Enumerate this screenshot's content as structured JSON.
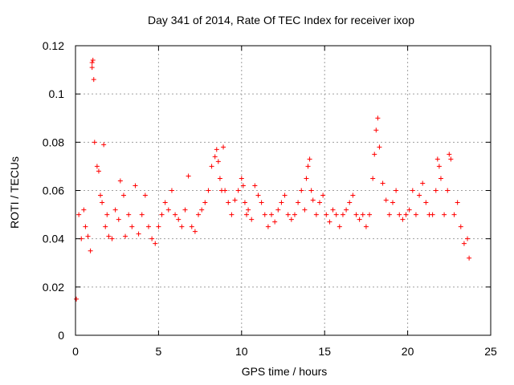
{
  "chart_data": {
    "type": "scatter",
    "title": "Day 341 of 2014, Rate Of TEC Index for receiver ixop",
    "xlabel": "GPS time / hours",
    "ylabel": "ROTI / TECUs",
    "xlim": [
      0,
      25
    ],
    "ylim": [
      0,
      0.12
    ],
    "x_ticks": [
      0,
      5,
      10,
      15,
      20,
      25
    ],
    "x_tick_labels": [
      "0",
      "5",
      "10",
      "15",
      "20",
      "25"
    ],
    "y_ticks": [
      0,
      0.02,
      0.04,
      0.06,
      0.08,
      0.1,
      0.12
    ],
    "y_tick_labels": [
      "0",
      "0.02",
      "0.04",
      "0.06",
      "0.08",
      "0.1",
      "0.12"
    ],
    "grid": true,
    "marker": "plus",
    "series": [
      {
        "name": "ROTI",
        "color": "#ff0000",
        "x": [
          0.05,
          0.2,
          0.35,
          0.5,
          0.6,
          0.75,
          0.9,
          1.0,
          1.0,
          1.05,
          1.1,
          1.15,
          1.3,
          1.4,
          1.5,
          1.6,
          1.7,
          1.8,
          1.9,
          2.0,
          2.2,
          2.4,
          2.6,
          2.7,
          2.9,
          3.0,
          3.2,
          3.4,
          3.6,
          3.8,
          4.0,
          4.2,
          4.4,
          4.6,
          4.8,
          5.0,
          5.2,
          5.4,
          5.6,
          5.8,
          6.0,
          6.2,
          6.4,
          6.6,
          6.8,
          7.0,
          7.2,
          7.4,
          7.6,
          7.8,
          8.0,
          8.2,
          8.4,
          8.5,
          8.6,
          8.7,
          8.8,
          8.9,
          9.0,
          9.2,
          9.4,
          9.6,
          9.8,
          10.0,
          10.1,
          10.2,
          10.3,
          10.4,
          10.6,
          10.8,
          11.0,
          11.2,
          11.4,
          11.6,
          11.8,
          12.0,
          12.2,
          12.4,
          12.6,
          12.8,
          13.0,
          13.2,
          13.4,
          13.6,
          13.8,
          13.9,
          14.0,
          14.1,
          14.2,
          14.3,
          14.5,
          14.7,
          14.9,
          15.1,
          15.3,
          15.5,
          15.7,
          15.9,
          16.1,
          16.3,
          16.5,
          16.7,
          16.9,
          17.1,
          17.3,
          17.5,
          17.7,
          17.9,
          18.0,
          18.1,
          18.2,
          18.3,
          18.5,
          18.7,
          18.9,
          19.1,
          19.3,
          19.5,
          19.7,
          19.9,
          20.1,
          20.3,
          20.5,
          20.7,
          20.9,
          21.1,
          21.3,
          21.5,
          21.7,
          21.8,
          21.9,
          22.0,
          22.2,
          22.4,
          22.5,
          22.6,
          22.8,
          23.0,
          23.2,
          23.4,
          23.6,
          23.7
        ],
        "y": [
          0.015,
          0.05,
          0.04,
          0.052,
          0.045,
          0.041,
          0.035,
          0.113,
          0.111,
          0.114,
          0.106,
          0.08,
          0.07,
          0.068,
          0.058,
          0.055,
          0.079,
          0.045,
          0.05,
          0.041,
          0.04,
          0.052,
          0.048,
          0.064,
          0.058,
          0.041,
          0.05,
          0.045,
          0.062,
          0.042,
          0.05,
          0.058,
          0.045,
          0.04,
          0.038,
          0.045,
          0.05,
          0.055,
          0.052,
          0.06,
          0.05,
          0.048,
          0.045,
          0.052,
          0.066,
          0.045,
          0.043,
          0.05,
          0.052,
          0.055,
          0.06,
          0.07,
          0.074,
          0.077,
          0.072,
          0.065,
          0.06,
          0.078,
          0.06,
          0.055,
          0.05,
          0.056,
          0.06,
          0.065,
          0.062,
          0.055,
          0.05,
          0.052,
          0.048,
          0.062,
          0.058,
          0.055,
          0.05,
          0.045,
          0.05,
          0.047,
          0.052,
          0.055,
          0.058,
          0.05,
          0.048,
          0.05,
          0.055,
          0.06,
          0.052,
          0.065,
          0.07,
          0.073,
          0.06,
          0.056,
          0.05,
          0.055,
          0.058,
          0.05,
          0.047,
          0.052,
          0.05,
          0.045,
          0.05,
          0.052,
          0.055,
          0.058,
          0.05,
          0.048,
          0.05,
          0.045,
          0.05,
          0.065,
          0.075,
          0.085,
          0.09,
          0.078,
          0.063,
          0.056,
          0.05,
          0.055,
          0.06,
          0.05,
          0.048,
          0.05,
          0.052,
          0.06,
          0.05,
          0.058,
          0.063,
          0.055,
          0.05,
          0.05,
          0.06,
          0.073,
          0.07,
          0.065,
          0.05,
          0.06,
          0.075,
          0.073,
          0.05,
          0.055,
          0.045,
          0.038,
          0.04,
          0.032
        ]
      }
    ]
  }
}
